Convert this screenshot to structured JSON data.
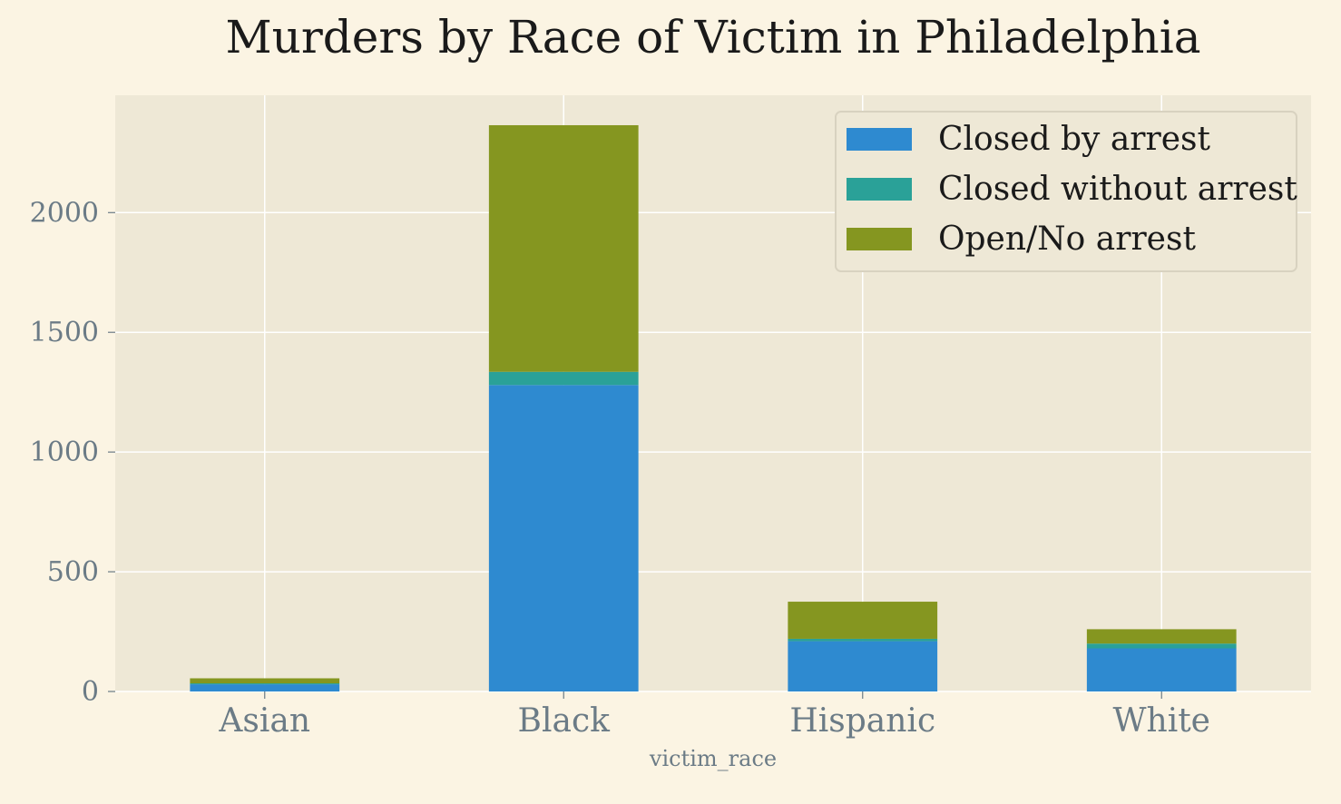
{
  "chart_data": {
    "type": "bar",
    "stacked": true,
    "title": "Murders by Race of Victim in Philadelphia",
    "xlabel": "victim_race",
    "ylabel": "",
    "categories": [
      "Asian",
      "Black",
      "Hispanic",
      "White"
    ],
    "series": [
      {
        "name": "Closed by arrest",
        "values": [
          30,
          1280,
          210,
          180
        ],
        "color": "#2e8ad0"
      },
      {
        "name": "Closed without arrest",
        "values": [
          4,
          55,
          10,
          20
        ],
        "color": "#2aa198"
      },
      {
        "name": "Open/No arrest",
        "values": [
          21,
          1030,
          155,
          60
        ],
        "color": "#859620"
      }
    ],
    "yticks": [
      0,
      500,
      1000,
      1500,
      2000
    ],
    "ylim": [
      0,
      2490
    ],
    "grid": true,
    "legend_position": "top-right",
    "colors": {
      "page_background": "#fbf4e3",
      "plot_background": "#eee8d6",
      "grid": "#ffffff",
      "tick_text": "#6b7b86"
    }
  }
}
